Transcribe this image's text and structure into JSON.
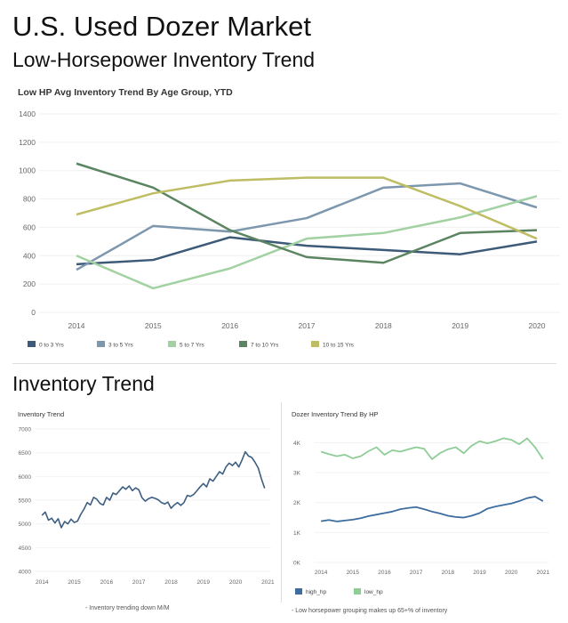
{
  "page": {
    "title": "U.S. Used Dozer Market",
    "subtitle": "Low-Horsepower Inventory Trend",
    "section_title": "Inventory Trend"
  },
  "notes": {
    "left": "- Inventory trending down M/M",
    "right": "- Low horsepower grouping makes up 65+% of inventory"
  },
  "chart_data": [
    {
      "type": "line",
      "title": "Low HP Avg Inventory Trend By Age Group, YTD",
      "x": [
        "2014",
        "2015",
        "2016",
        "2017",
        "2018",
        "2019",
        "2020"
      ],
      "yticks": [
        "0",
        "200",
        "400",
        "600",
        "800",
        "1000",
        "1200",
        "1400"
      ],
      "ylim": [
        0,
        1400
      ],
      "legend_position": "bottom",
      "series": [
        {
          "name": "0 to 3 Yrs",
          "color": "#3d5a78",
          "values": [
            340,
            370,
            530,
            470,
            440,
            410,
            500
          ]
        },
        {
          "name": "3 to 5 Yrs",
          "color": "#7d98ae",
          "values": [
            300,
            610,
            570,
            665,
            880,
            910,
            740
          ]
        },
        {
          "name": "5 to 7 Yrs",
          "color": "#a2d1a2",
          "values": [
            400,
            170,
            310,
            520,
            560,
            670,
            820
          ]
        },
        {
          "name": "7 to 10 Yrs",
          "color": "#5b8561",
          "values": [
            1050,
            880,
            580,
            390,
            350,
            560,
            580
          ]
        },
        {
          "name": "10 to 15 Yrs",
          "color": "#bfbd63",
          "values": [
            690,
            840,
            930,
            950,
            950,
            750,
            520
          ]
        }
      ]
    },
    {
      "type": "line",
      "title": "Inventory Trend",
      "x": [
        "2014",
        "2015",
        "2016",
        "2017",
        "2018",
        "2019",
        "2020",
        "2021"
      ],
      "yticks": [
        "4000",
        "4500",
        "5000",
        "5500",
        "6000",
        "6500",
        "7000"
      ],
      "ylim": [
        4000,
        7000
      ],
      "xrange": [
        2013.8,
        2021.1
      ],
      "series": [
        {
          "color": "#3d5f82",
          "points": [
            [
              2014.0,
              5180
            ],
            [
              2014.1,
              5250
            ],
            [
              2014.2,
              5080
            ],
            [
              2014.3,
              5120
            ],
            [
              2014.4,
              5020
            ],
            [
              2014.5,
              5110
            ],
            [
              2014.6,
              4920
            ],
            [
              2014.7,
              5050
            ],
            [
              2014.8,
              5000
            ],
            [
              2014.9,
              5100
            ],
            [
              2015.0,
              5030
            ],
            [
              2015.1,
              5060
            ],
            [
              2015.2,
              5200
            ],
            [
              2015.3,
              5310
            ],
            [
              2015.4,
              5450
            ],
            [
              2015.5,
              5400
            ],
            [
              2015.6,
              5560
            ],
            [
              2015.7,
              5520
            ],
            [
              2015.8,
              5430
            ],
            [
              2015.9,
              5400
            ],
            [
              2016.0,
              5560
            ],
            [
              2016.1,
              5500
            ],
            [
              2016.2,
              5650
            ],
            [
              2016.3,
              5620
            ],
            [
              2016.4,
              5700
            ],
            [
              2016.5,
              5780
            ],
            [
              2016.6,
              5730
            ],
            [
              2016.7,
              5800
            ],
            [
              2016.8,
              5700
            ],
            [
              2016.9,
              5760
            ],
            [
              2017.0,
              5720
            ],
            [
              2017.1,
              5550
            ],
            [
              2017.2,
              5480
            ],
            [
              2017.3,
              5530
            ],
            [
              2017.4,
              5560
            ],
            [
              2017.5,
              5540
            ],
            [
              2017.6,
              5510
            ],
            [
              2017.7,
              5450
            ],
            [
              2017.8,
              5420
            ],
            [
              2017.9,
              5460
            ],
            [
              2018.0,
              5330
            ],
            [
              2018.1,
              5400
            ],
            [
              2018.2,
              5450
            ],
            [
              2018.3,
              5390
            ],
            [
              2018.4,
              5450
            ],
            [
              2018.5,
              5600
            ],
            [
              2018.6,
              5580
            ],
            [
              2018.7,
              5620
            ],
            [
              2018.8,
              5700
            ],
            [
              2018.9,
              5780
            ],
            [
              2019.0,
              5850
            ],
            [
              2019.1,
              5780
            ],
            [
              2019.2,
              5950
            ],
            [
              2019.3,
              5900
            ],
            [
              2019.4,
              6000
            ],
            [
              2019.5,
              6100
            ],
            [
              2019.6,
              6050
            ],
            [
              2019.7,
              6200
            ],
            [
              2019.8,
              6280
            ],
            [
              2019.9,
              6230
            ],
            [
              2020.0,
              6300
            ],
            [
              2020.1,
              6200
            ],
            [
              2020.2,
              6350
            ],
            [
              2020.3,
              6520
            ],
            [
              2020.4,
              6430
            ],
            [
              2020.5,
              6400
            ],
            [
              2020.6,
              6300
            ],
            [
              2020.7,
              6180
            ],
            [
              2020.8,
              5950
            ],
            [
              2020.9,
              5750
            ]
          ]
        }
      ]
    },
    {
      "type": "line",
      "title": "Dozer Inventory Trend By HP",
      "x": [
        "2014",
        "2015",
        "2016",
        "2017",
        "2018",
        "2019",
        "2020",
        "2021"
      ],
      "yticks": [
        "0K",
        "1K",
        "2K",
        "3K",
        "4K"
      ],
      "ylim": [
        0,
        4400
      ],
      "xrange": [
        2013.8,
        2021.2
      ],
      "legend_position": "bottom",
      "series": [
        {
          "name": "high_hp",
          "color": "#3d6d9e",
          "points": [
            [
              2014.0,
              1380
            ],
            [
              2014.25,
              1420
            ],
            [
              2014.5,
              1370
            ],
            [
              2014.75,
              1400
            ],
            [
              2015.0,
              1430
            ],
            [
              2015.25,
              1480
            ],
            [
              2015.5,
              1550
            ],
            [
              2015.75,
              1600
            ],
            [
              2016.0,
              1650
            ],
            [
              2016.25,
              1700
            ],
            [
              2016.5,
              1780
            ],
            [
              2016.75,
              1820
            ],
            [
              2017.0,
              1850
            ],
            [
              2017.25,
              1780
            ],
            [
              2017.5,
              1700
            ],
            [
              2017.75,
              1640
            ],
            [
              2018.0,
              1560
            ],
            [
              2018.25,
              1520
            ],
            [
              2018.5,
              1500
            ],
            [
              2018.75,
              1560
            ],
            [
              2019.0,
              1650
            ],
            [
              2019.25,
              1800
            ],
            [
              2019.5,
              1870
            ],
            [
              2019.75,
              1920
            ],
            [
              2020.0,
              1970
            ],
            [
              2020.25,
              2050
            ],
            [
              2020.5,
              2150
            ],
            [
              2020.75,
              2200
            ],
            [
              2021.0,
              2050
            ]
          ]
        },
        {
          "name": "low_hp",
          "color": "#8fcd96",
          "points": [
            [
              2014.0,
              3700
            ],
            [
              2014.25,
              3620
            ],
            [
              2014.5,
              3550
            ],
            [
              2014.75,
              3600
            ],
            [
              2015.0,
              3480
            ],
            [
              2015.25,
              3550
            ],
            [
              2015.5,
              3720
            ],
            [
              2015.75,
              3850
            ],
            [
              2016.0,
              3600
            ],
            [
              2016.25,
              3750
            ],
            [
              2016.5,
              3700
            ],
            [
              2016.75,
              3780
            ],
            [
              2017.0,
              3850
            ],
            [
              2017.25,
              3800
            ],
            [
              2017.5,
              3450
            ],
            [
              2017.75,
              3650
            ],
            [
              2018.0,
              3780
            ],
            [
              2018.25,
              3850
            ],
            [
              2018.5,
              3650
            ],
            [
              2018.75,
              3900
            ],
            [
              2019.0,
              4050
            ],
            [
              2019.25,
              3980
            ],
            [
              2019.5,
              4050
            ],
            [
              2019.75,
              4150
            ],
            [
              2020.0,
              4100
            ],
            [
              2020.25,
              3950
            ],
            [
              2020.5,
              4150
            ],
            [
              2020.75,
              3850
            ],
            [
              2021.0,
              3450
            ]
          ]
        }
      ]
    }
  ]
}
